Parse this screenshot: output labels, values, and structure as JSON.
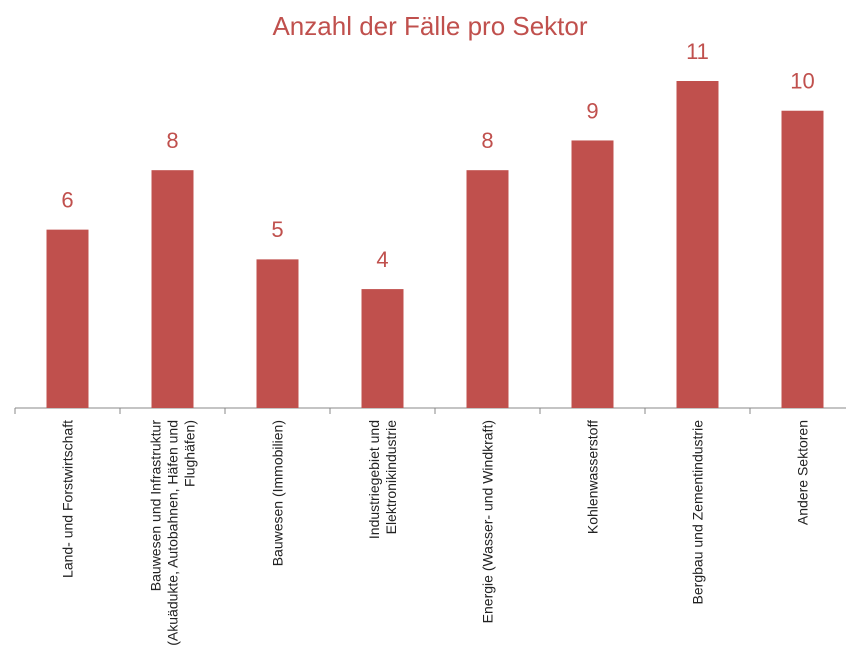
{
  "chart_data": {
    "type": "bar",
    "title": "Anzahl der Fälle pro Sektor",
    "categories": [
      "Land- und Forstwirtschaft",
      "Bauwesen und Infrastruktur (Akuädukte, Autobahnen, Häfen und Flughäfen)",
      "Bauwesen (Immobilien)",
      "Industriegebiet und Elektronikindustrie",
      "Energie (Wasser- und Windkraft)",
      "Kohlenwasserstoff",
      "Bergbau und Zementindustrie",
      "Andere Sektoren"
    ],
    "values": [
      6,
      8,
      5,
      4,
      8,
      9,
      11,
      10
    ],
    "color": "#c0504d",
    "ylim": [
      0,
      11
    ],
    "grid": false
  }
}
